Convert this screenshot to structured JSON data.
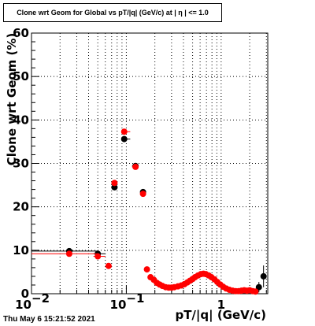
{
  "header": {
    "title": "Clone wrt Geom for Global vs pT/|q| (GeV/c) at | η | <= 1.0"
  },
  "footer": {
    "timestamp": "Thu May  6 15:21:52 2021"
  },
  "chart_data": {
    "type": "scatter",
    "title": "Clone wrt Geom for Global vs pT/|q| (GeV/c) at | η | <= 1.0",
    "xlabel": "pT/|q| (GeV/c)",
    "ylabel": "Clone wrt Geom (%)",
    "xscale": "log",
    "xlim": [
      0.01,
      3.1
    ],
    "ylim": [
      0,
      60
    ],
    "grid": true,
    "x_tick_labels": [
      {
        "value": 0.01,
        "base": "10",
        "exp": "−2"
      },
      {
        "value": 0.1,
        "base": "10",
        "exp": "−1"
      },
      {
        "value": 1,
        "base": "1",
        "exp": ""
      }
    ],
    "y_ticks": [
      0,
      10,
      20,
      30,
      40,
      50,
      60
    ],
    "series": [
      {
        "color": "#000000",
        "points": [
          {
            "x": 0.025,
            "y": 9.8,
            "xlo": 0.01,
            "xhi": 0.05
          },
          {
            "x": 0.05,
            "y": 9.2,
            "xlo": 0.045,
            "xhi": 0.06
          },
          {
            "x": 0.075,
            "y": 24.5,
            "xlo": 0.07,
            "xhi": 0.08
          },
          {
            "x": 0.095,
            "y": 35.6,
            "xlo": 0.09,
            "xhi": 0.11
          },
          {
            "x": 0.125,
            "y": 29.4,
            "xlo": 0.115,
            "xhi": 0.135
          },
          {
            "x": 0.15,
            "y": 23.4,
            "xlo": 0.145,
            "xhi": 0.155
          },
          {
            "x": 2.5,
            "y": 1.5,
            "yerr": 1.2
          },
          {
            "x": 2.8,
            "y": 4.0,
            "yerr": 2.5
          }
        ]
      },
      {
        "color": "#ff0000",
        "points": [
          {
            "x": 0.025,
            "y": 9.2,
            "xlo": 0.01,
            "xhi": 0.05
          },
          {
            "x": 0.05,
            "y": 8.6,
            "xlo": 0.045,
            "xhi": 0.06
          },
          {
            "x": 0.065,
            "y": 6.4
          },
          {
            "x": 0.075,
            "y": 25.5,
            "xlo": 0.07,
            "xhi": 0.08
          },
          {
            "x": 0.095,
            "y": 37.3,
            "xlo": 0.09,
            "xhi": 0.11
          },
          {
            "x": 0.125,
            "y": 29.2,
            "xlo": 0.115,
            "xhi": 0.135
          },
          {
            "x": 0.15,
            "y": 23.0,
            "xlo": 0.145,
            "xhi": 0.155
          },
          {
            "x": 0.165,
            "y": 5.6
          },
          {
            "x": 0.18,
            "y": 3.8
          },
          {
            "x": 0.195,
            "y": 3.2
          },
          {
            "x": 0.21,
            "y": 2.5
          },
          {
            "x": 0.225,
            "y": 2.1
          },
          {
            "x": 0.24,
            "y": 1.8
          },
          {
            "x": 0.26,
            "y": 1.5
          },
          {
            "x": 0.28,
            "y": 1.4
          },
          {
            "x": 0.3,
            "y": 1.4
          },
          {
            "x": 0.32,
            "y": 1.5
          },
          {
            "x": 0.35,
            "y": 1.7
          },
          {
            "x": 0.38,
            "y": 1.9
          },
          {
            "x": 0.41,
            "y": 2.2
          },
          {
            "x": 0.44,
            "y": 2.6
          },
          {
            "x": 0.47,
            "y": 3.0
          },
          {
            "x": 0.5,
            "y": 3.4
          },
          {
            "x": 0.53,
            "y": 3.8
          },
          {
            "x": 0.57,
            "y": 4.2
          },
          {
            "x": 0.61,
            "y": 4.5
          },
          {
            "x": 0.65,
            "y": 4.6
          },
          {
            "x": 0.69,
            "y": 4.5
          },
          {
            "x": 0.74,
            "y": 4.2
          },
          {
            "x": 0.79,
            "y": 3.8
          },
          {
            "x": 0.85,
            "y": 3.3
          },
          {
            "x": 0.91,
            "y": 2.7
          },
          {
            "x": 0.98,
            "y": 2.1
          },
          {
            "x": 1.05,
            "y": 1.6
          },
          {
            "x": 1.13,
            "y": 1.2
          },
          {
            "x": 1.22,
            "y": 0.9
          },
          {
            "x": 1.32,
            "y": 0.7
          },
          {
            "x": 1.42,
            "y": 0.6
          },
          {
            "x": 1.53,
            "y": 0.6
          },
          {
            "x": 1.64,
            "y": 0.7
          },
          {
            "x": 1.75,
            "y": 0.8
          },
          {
            "x": 1.87,
            "y": 0.7
          },
          {
            "x": 2.0,
            "y": 0.8
          },
          {
            "x": 2.15,
            "y": 0.6
          },
          {
            "x": 2.3,
            "y": 0.5
          }
        ]
      }
    ]
  }
}
